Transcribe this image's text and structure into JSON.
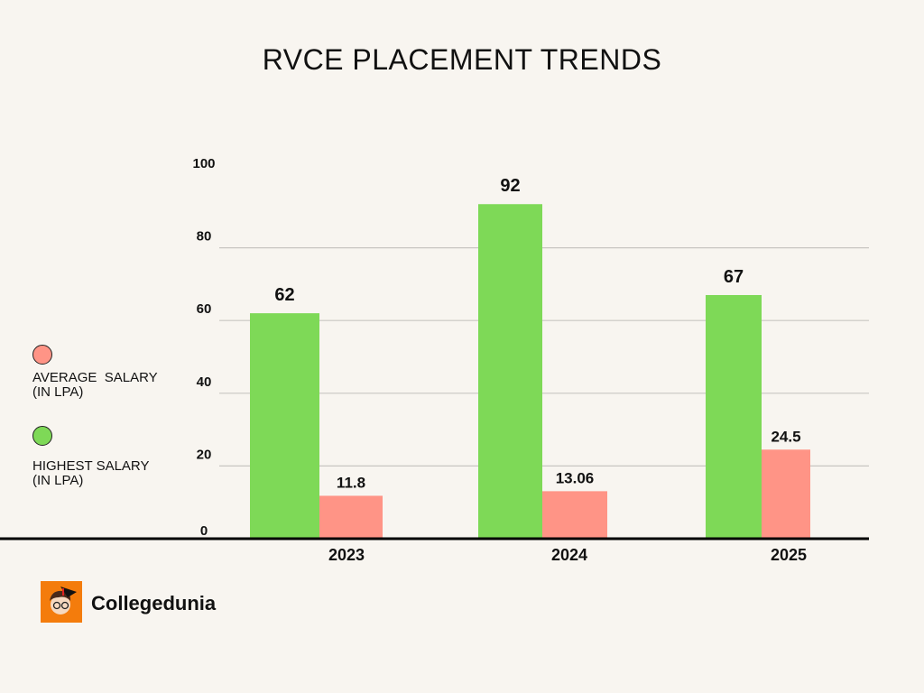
{
  "chart_data": {
    "type": "bar",
    "title": "RVCE PLACEMENT TRENDS",
    "categories": [
      "2023",
      "2024",
      "2025"
    ],
    "series": [
      {
        "name": "HIGHEST SALARY\n(IN LPA)",
        "color": "#7ed957",
        "values": [
          62,
          92,
          67
        ],
        "labels": [
          "62",
          "92",
          "67"
        ]
      },
      {
        "name": "AVERAGE  SALARY\n(IN LPA)",
        "color": "#ff9486",
        "values": [
          11.8,
          13.06,
          24.5
        ],
        "labels": [
          "11.8",
          "13.06",
          "24.5"
        ]
      }
    ],
    "yticks": [
      "0",
      "20",
      "40",
      "60",
      "80",
      "100"
    ],
    "ylim": [
      0,
      100
    ],
    "xlabel": "",
    "ylabel": "",
    "grid": true,
    "legend": "left"
  },
  "brand": {
    "name": "Collegedunia"
  }
}
